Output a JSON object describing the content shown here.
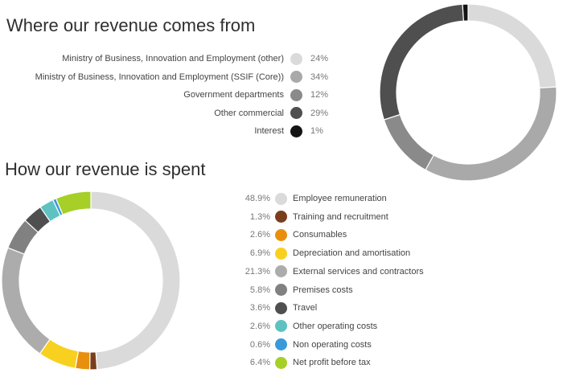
{
  "chart_data": [
    {
      "type": "pie",
      "title": "Where our revenue comes from",
      "start_angle_deg": 0,
      "slices": [
        {
          "label": "Ministry of Business, Innovation and Employment (other)",
          "value": 24,
          "display": "24%",
          "color": "#dadada"
        },
        {
          "label": "Ministry of Business, Innovation and Employment (SSIF (Core))",
          "value": 34,
          "display": "34%",
          "color": "#a9a9a9"
        },
        {
          "label": "Government departments",
          "value": 12,
          "display": "12%",
          "color": "#8a8a8a"
        },
        {
          "label": "Other commercial",
          "value": 29,
          "display": "29%",
          "color": "#4f4f4f"
        },
        {
          "label": "Interest",
          "value": 1,
          "display": "1%",
          "color": "#141414"
        }
      ]
    },
    {
      "type": "pie",
      "title": "How our revenue is spent",
      "start_angle_deg": 0,
      "slices": [
        {
          "label": "Employee remuneration",
          "value": 48.9,
          "display": "48.9%",
          "color": "#dadada"
        },
        {
          "label": "Training and recruitment",
          "value": 1.3,
          "display": "1.3%",
          "color": "#7b3e1c"
        },
        {
          "label": "Consumables",
          "value": 2.6,
          "display": "2.6%",
          "color": "#e8900e"
        },
        {
          "label": "Depreciation and amortisation",
          "value": 6.9,
          "display": "6.9%",
          "color": "#f8d020"
        },
        {
          "label": "External services and contractors",
          "value": 21.3,
          "display": "21.3%",
          "color": "#acacac"
        },
        {
          "label": "Premises costs",
          "value": 5.8,
          "display": "5.8%",
          "color": "#818181"
        },
        {
          "label": "Travel",
          "value": 3.6,
          "display": "3.6%",
          "color": "#4f4f4f"
        },
        {
          "label": "Other operating costs",
          "value": 2.6,
          "display": "2.6%",
          "color": "#5ec2c2"
        },
        {
          "label": "Non operating costs",
          "value": 0.6,
          "display": "0.6%",
          "color": "#3a9ad9"
        },
        {
          "label": "Net profit before tax",
          "value": 6.4,
          "display": "6.4%",
          "color": "#a6cf28"
        }
      ]
    }
  ]
}
